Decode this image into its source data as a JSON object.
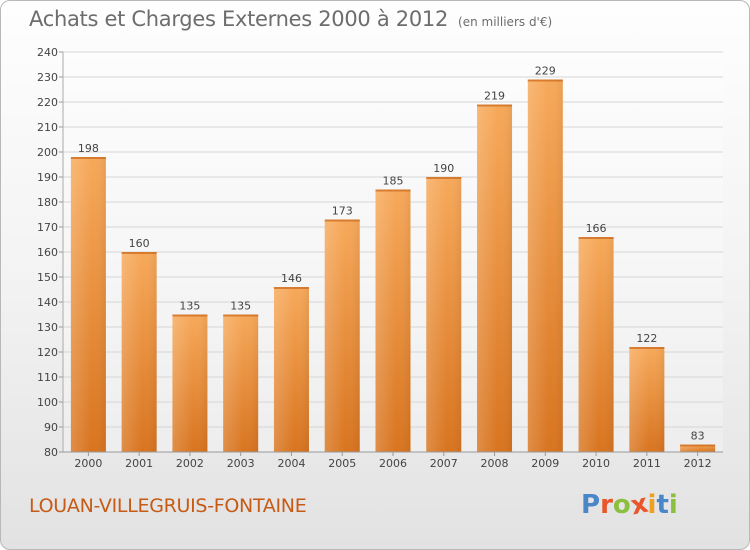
{
  "title": "Achats et Charges Externes 2000 à 2012",
  "unit": "(en milliers d'€)",
  "commune": "LOUAN-VILLEGRUIS-FONTAINE",
  "logo": {
    "text": "Proxiti",
    "colors": [
      "#4a87c8",
      "#e8562a",
      "#8cbf3f",
      "#e8562a",
      "#f0a020",
      "#4a87c8",
      "#8cbf3f"
    ]
  },
  "colors": {
    "bar_light": "#f7a95a",
    "bar_dark": "#d8741f",
    "grid": "#d6d6d6"
  },
  "chart_data": {
    "type": "bar",
    "categories": [
      "2000",
      "2001",
      "2002",
      "2003",
      "2004",
      "2005",
      "2006",
      "2007",
      "2008",
      "2009",
      "2010",
      "2011",
      "2012"
    ],
    "values": [
      198,
      160,
      135,
      135,
      146,
      173,
      185,
      190,
      219,
      229,
      166,
      122,
      83
    ],
    "ylim": [
      80,
      240
    ],
    "yticks": [
      80,
      90,
      100,
      110,
      120,
      130,
      140,
      150,
      160,
      170,
      180,
      190,
      200,
      210,
      220,
      230,
      240
    ],
    "grid": true,
    "xlabel": "",
    "ylabel": ""
  }
}
